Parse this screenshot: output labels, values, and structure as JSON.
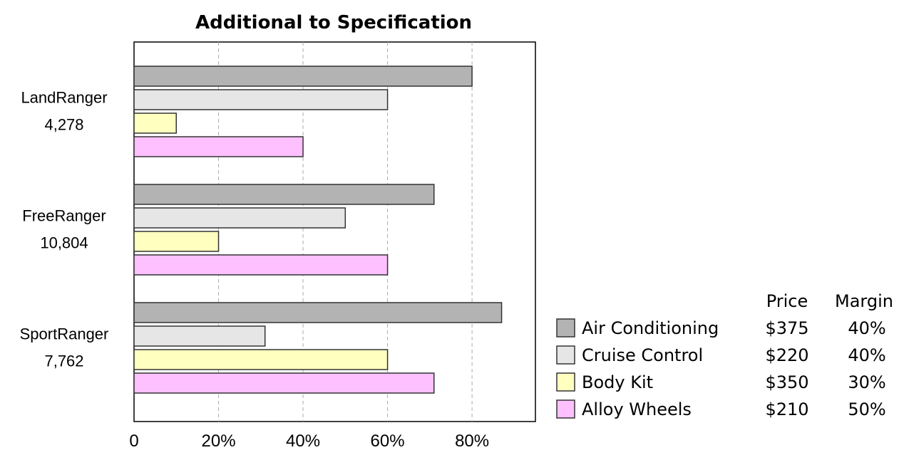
{
  "chart_data": {
    "type": "bar",
    "orientation": "horizontal",
    "title": "Additional to Specification",
    "categories": [
      {
        "name": "LandRanger",
        "sublabel": "4,278"
      },
      {
        "name": "FreeRanger",
        "sublabel": "10,804"
      },
      {
        "name": "SportRanger",
        "sublabel": "7,762"
      }
    ],
    "series": [
      {
        "name": "Air Conditioning",
        "price": "$375",
        "margin": "40%",
        "color": "#b3b3b3",
        "values": [
          80,
          71,
          87
        ]
      },
      {
        "name": "Cruise Control",
        "price": "$220",
        "margin": "40%",
        "color": "#e6e6e6",
        "values": [
          60,
          50,
          31
        ]
      },
      {
        "name": "Body Kit",
        "price": "$350",
        "margin": "30%",
        "color": "#ffffc0",
        "values": [
          10,
          20,
          60
        ]
      },
      {
        "name": "Alloy Wheels",
        "price": "$210",
        "margin": "50%",
        "color": "#ffc0ff",
        "values": [
          40,
          60,
          71
        ]
      }
    ],
    "xlim": [
      0,
      95
    ],
    "xticks": [
      0,
      20,
      40,
      60,
      80
    ],
    "xtick_labels": [
      "0",
      "20%",
      "40%",
      "60%",
      "80%"
    ],
    "grid": "vertical dashed",
    "legend_position": "bottom-right",
    "legend_headers": {
      "price": "Price",
      "margin": "Margin"
    }
  }
}
